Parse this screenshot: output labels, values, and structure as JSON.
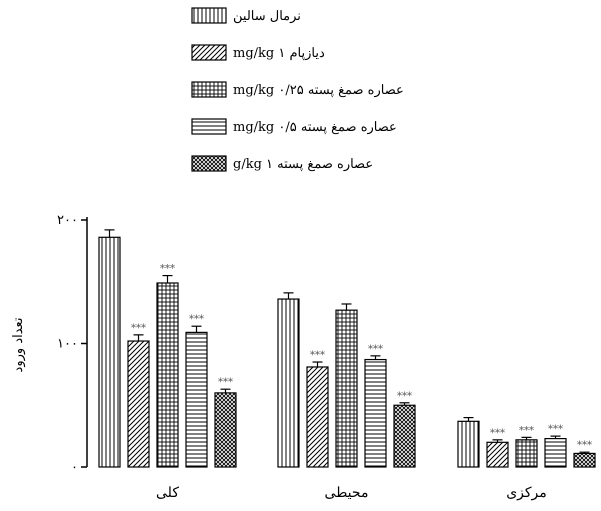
{
  "chart_data": {
    "type": "bar",
    "title": "",
    "xlabel": "",
    "ylabel": "تعداد ورود",
    "ylim": [
      0,
      200
    ],
    "yticks": [
      {
        "value": 0,
        "label": "۰"
      },
      {
        "value": 100,
        "label": "۱۰۰"
      },
      {
        "value": 200,
        "label": "۲۰۰"
      }
    ],
    "categories": [
      "کلی",
      "محیطی",
      "مرکزی"
    ],
    "legend_position": "top",
    "series": [
      {
        "name": "نرمال سالین",
        "pattern": "vertical",
        "values": [
          186,
          136,
          37
        ],
        "errors": [
          6,
          5,
          3
        ],
        "sig": [
          "",
          "",
          ""
        ]
      },
      {
        "name": "دیازپام ۱ mg/kg",
        "pattern": "diagonal",
        "values": [
          102,
          81,
          20
        ],
        "errors": [
          5,
          4,
          2
        ],
        "sig": [
          "***",
          "***",
          "***"
        ]
      },
      {
        "name": "عصاره صمغ پسته ۰/۲۵ mg/kg",
        "pattern": "grid",
        "values": [
          149,
          127,
          22
        ],
        "errors": [
          6,
          5,
          2
        ],
        "sig": [
          "***",
          "",
          "***"
        ]
      },
      {
        "name": "عصاره صمغ پسته ۰/۵ mg/kg",
        "pattern": "horizontal",
        "values": [
          109,
          87,
          23
        ],
        "errors": [
          5,
          3,
          2
        ],
        "sig": [
          "***",
          "***",
          "***"
        ]
      },
      {
        "name": "عصاره صمغ پسته ۱ g/kg",
        "pattern": "crosshatch",
        "values": [
          60,
          50,
          11
        ],
        "errors": [
          3,
          2,
          1
        ],
        "sig": [
          "***",
          "***",
          "***"
        ]
      }
    ]
  }
}
